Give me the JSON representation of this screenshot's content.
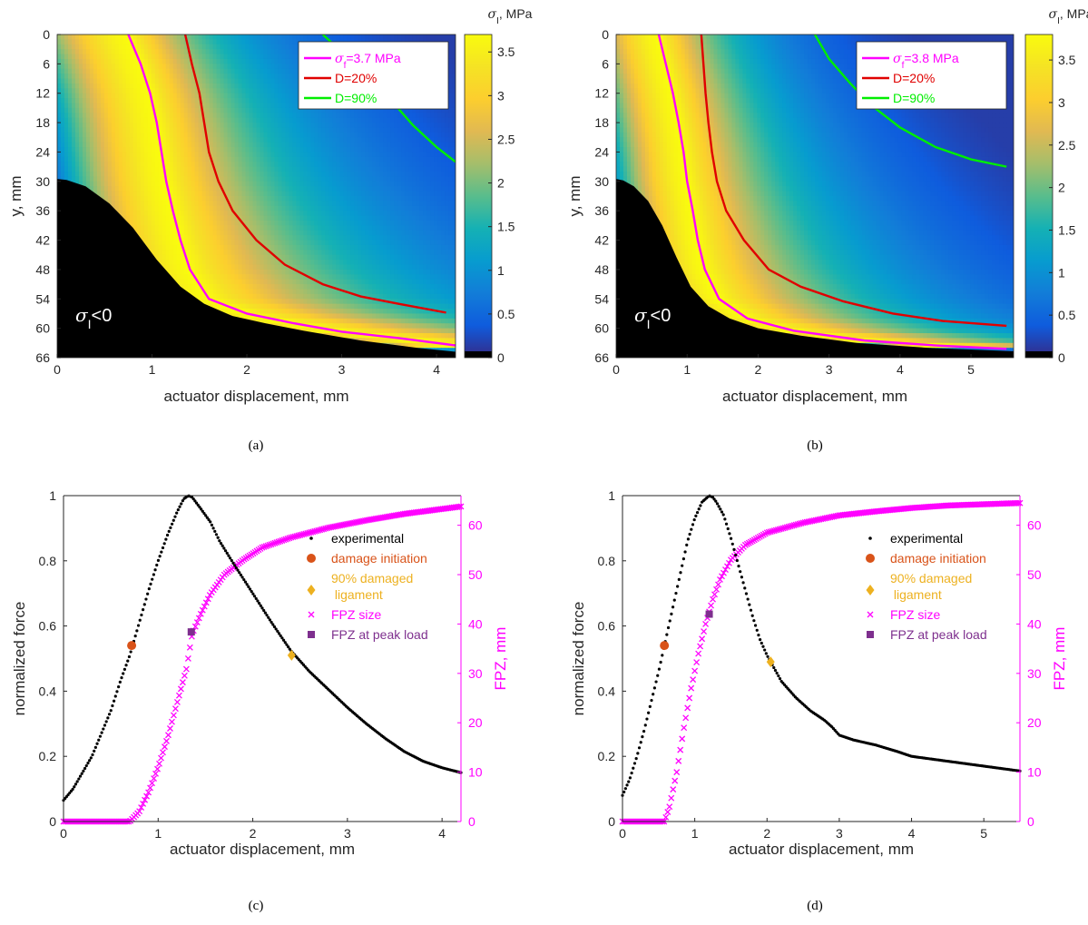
{
  "captions": [
    "(a)",
    "(b)",
    "(c)",
    "(d)"
  ],
  "colors": {
    "magenta": "#ff00ff",
    "red": "#e00000",
    "green": "#00ee00",
    "black": "#000000",
    "damage_init": "#d95319",
    "ligament": "#edb120",
    "fpz_peak": "#7e2f8e"
  },
  "colormap": "parula",
  "chart_data": [
    {
      "type": "heatmap",
      "caption": "(a)",
      "xlabel": "actuator displacement, mm",
      "ylabel": "y, mm",
      "xlim": [
        0,
        4.2
      ],
      "ylim": [
        0,
        66
      ],
      "y_reversed": true,
      "x_ticks": [
        0,
        1,
        2,
        3,
        4
      ],
      "y_ticks": [
        0,
        6,
        12,
        18,
        24,
        30,
        36,
        42,
        48,
        54,
        60,
        66
      ],
      "colorbar": {
        "label": "σI, MPa",
        "label_sym": "σ",
        "label_sub": "I",
        "label_tail": ", MPa",
        "range": [
          0,
          3.7
        ],
        "ticks": [
          0,
          0.5,
          1,
          1.5,
          2,
          2.5,
          3,
          3.5
        ]
      },
      "annotation": {
        "sym": "σ",
        "sub": "I",
        "tail": "<0"
      },
      "legend": [
        {
          "sym": "σ",
          "sub": "f",
          "tail": "=3.7 MPa",
          "color": "#ff00ff"
        },
        {
          "sym": "",
          "sub": "",
          "tail": "D=20%",
          "color": "#e00000"
        },
        {
          "sym": "",
          "sub": "",
          "tail": "D=90%",
          "color": "#00ee00"
        }
      ],
      "field": {
        "t0": 0.75,
        "t1": 2.8,
        "k": 0.12,
        "delta": 1.3
      },
      "neg_region": [
        [
          0,
          29.5
        ],
        [
          0.1,
          29.7
        ],
        [
          0.3,
          31
        ],
        [
          0.55,
          34.5
        ],
        [
          0.8,
          39.5
        ],
        [
          1.05,
          46
        ],
        [
          1.3,
          51.5
        ],
        [
          1.55,
          55
        ],
        [
          1.85,
          57.5
        ],
        [
          2.2,
          59
        ],
        [
          2.6,
          60.5
        ],
        [
          3.2,
          62.5
        ],
        [
          3.8,
          64
        ],
        [
          4.2,
          64.8
        ]
      ],
      "contours": {
        "sigma_f": [
          [
            0.75,
            0
          ],
          [
            0.88,
            6
          ],
          [
            0.98,
            12
          ],
          [
            1.05,
            18
          ],
          [
            1.1,
            24
          ],
          [
            1.15,
            30
          ],
          [
            1.22,
            36
          ],
          [
            1.3,
            42
          ],
          [
            1.4,
            48
          ],
          [
            1.6,
            54
          ],
          [
            2.0,
            57
          ],
          [
            2.5,
            59
          ],
          [
            3.0,
            60.7
          ],
          [
            3.6,
            62
          ],
          [
            4.2,
            63.5
          ]
        ],
        "D20": [
          [
            1.35,
            0
          ],
          [
            1.42,
            6
          ],
          [
            1.5,
            12
          ],
          [
            1.55,
            18
          ],
          [
            1.6,
            24
          ],
          [
            1.7,
            30
          ],
          [
            1.85,
            36
          ],
          [
            2.1,
            42
          ],
          [
            2.4,
            47
          ],
          [
            2.8,
            51
          ],
          [
            3.2,
            53.5
          ],
          [
            3.6,
            55
          ],
          [
            4.1,
            56.8
          ]
        ],
        "D90": [
          [
            2.8,
            0
          ],
          [
            3.0,
            3.5
          ],
          [
            3.25,
            8
          ],
          [
            3.5,
            13
          ],
          [
            3.75,
            18.5
          ],
          [
            4.0,
            23
          ],
          [
            4.2,
            26
          ]
        ]
      }
    },
    {
      "type": "heatmap",
      "caption": "(b)",
      "xlabel": "actuator displacement, mm",
      "ylabel": "y, mm",
      "xlim": [
        0,
        5.6
      ],
      "ylim": [
        0,
        66
      ],
      "y_reversed": true,
      "x_ticks": [
        0,
        1,
        2,
        3,
        4,
        5
      ],
      "y_ticks": [
        0,
        6,
        12,
        18,
        24,
        30,
        36,
        42,
        48,
        54,
        60,
        66
      ],
      "colorbar": {
        "label": "σI, MPa",
        "label_sym": "σ",
        "label_sub": "I",
        "label_tail": ", MPa",
        "range": [
          0,
          3.8
        ],
        "ticks": [
          0,
          0.5,
          1,
          1.5,
          2,
          2.5,
          3,
          3.5
        ]
      },
      "annotation": {
        "sym": "σ",
        "sub": "I",
        "tail": "<0"
      },
      "legend": [
        {
          "sym": "σ",
          "sub": "f",
          "tail": "=3.8 MPa",
          "color": "#ff00ff"
        },
        {
          "sym": "",
          "sub": "",
          "tail": "D=20%",
          "color": "#e00000"
        },
        {
          "sym": "",
          "sub": "",
          "tail": "D=90%",
          "color": "#00ee00"
        }
      ],
      "field": {
        "t0": 0.55,
        "t1": 2.9,
        "k": 0.1,
        "delta": 1.25
      },
      "neg_region": [
        [
          0,
          29.5
        ],
        [
          0.1,
          29.8
        ],
        [
          0.25,
          31
        ],
        [
          0.45,
          34
        ],
        [
          0.65,
          39
        ],
        [
          0.85,
          45.5
        ],
        [
          1.05,
          51.5
        ],
        [
          1.3,
          55.5
        ],
        [
          1.6,
          58
        ],
        [
          2.0,
          60
        ],
        [
          2.6,
          61.5
        ],
        [
          3.4,
          63
        ],
        [
          4.4,
          64
        ],
        [
          5.6,
          64.7
        ]
      ],
      "contours": {
        "sigma_f": [
          [
            0.6,
            0
          ],
          [
            0.7,
            6
          ],
          [
            0.8,
            12
          ],
          [
            0.88,
            18
          ],
          [
            0.95,
            24
          ],
          [
            1.0,
            30
          ],
          [
            1.08,
            36
          ],
          [
            1.15,
            42
          ],
          [
            1.25,
            48
          ],
          [
            1.45,
            54
          ],
          [
            1.85,
            58
          ],
          [
            2.5,
            60.5
          ],
          [
            3.5,
            62.5
          ],
          [
            4.5,
            63.5
          ],
          [
            5.5,
            64.2
          ]
        ],
        "D20": [
          [
            1.2,
            0
          ],
          [
            1.23,
            6
          ],
          [
            1.26,
            12
          ],
          [
            1.3,
            18
          ],
          [
            1.35,
            24
          ],
          [
            1.42,
            30
          ],
          [
            1.55,
            36
          ],
          [
            1.8,
            42
          ],
          [
            2.15,
            48
          ],
          [
            2.6,
            51.5
          ],
          [
            3.2,
            54.5
          ],
          [
            3.9,
            57
          ],
          [
            4.6,
            58.5
          ],
          [
            5.5,
            59.5
          ]
        ],
        "D90": [
          [
            2.8,
            0
          ],
          [
            3.0,
            5
          ],
          [
            3.3,
            10
          ],
          [
            3.6,
            14.5
          ],
          [
            4.0,
            19
          ],
          [
            4.5,
            23
          ],
          [
            5.0,
            25.5
          ],
          [
            5.5,
            27
          ]
        ]
      }
    },
    {
      "type": "scatter",
      "caption": "(c)",
      "xlabel": "actuator displacement, mm",
      "ylabel": "normalized force",
      "y2label": "FPZ, mm",
      "xlim": [
        0,
        4.2
      ],
      "ylim": [
        0,
        1
      ],
      "y2lim": [
        0,
        66
      ],
      "x_ticks": [
        0,
        1,
        2,
        3,
        4
      ],
      "y_ticks": [
        0,
        0.2,
        0.4,
        0.6,
        0.8,
        1
      ],
      "y2_ticks": [
        0,
        10,
        20,
        30,
        40,
        50,
        60
      ],
      "legend": [
        "experimental",
        "damage initiation",
        "90% damaged\n ligament",
        "FPZ size",
        "FPZ at peak load"
      ],
      "series": [
        {
          "name": "experimental",
          "axis": "left",
          "points": [
            [
              0,
              0.065
            ],
            [
              0.1,
              0.1
            ],
            [
              0.2,
              0.15
            ],
            [
              0.3,
              0.2
            ],
            [
              0.4,
              0.27
            ],
            [
              0.5,
              0.34
            ],
            [
              0.6,
              0.43
            ],
            [
              0.7,
              0.51
            ],
            [
              0.8,
              0.61
            ],
            [
              0.9,
              0.71
            ],
            [
              1.0,
              0.8
            ],
            [
              1.1,
              0.88
            ],
            [
              1.2,
              0.95
            ],
            [
              1.27,
              0.99
            ],
            [
              1.32,
              1.0
            ],
            [
              1.36,
              0.995
            ],
            [
              1.45,
              0.96
            ],
            [
              1.55,
              0.92
            ],
            [
              1.65,
              0.86
            ],
            [
              1.8,
              0.79
            ],
            [
              2.0,
              0.7
            ],
            [
              2.2,
              0.61
            ],
            [
              2.4,
              0.525
            ],
            [
              2.6,
              0.46
            ],
            [
              2.8,
              0.405
            ],
            [
              3.0,
              0.35
            ],
            [
              3.2,
              0.3
            ],
            [
              3.4,
              0.255
            ],
            [
              3.6,
              0.215
            ],
            [
              3.8,
              0.185
            ],
            [
              4.0,
              0.165
            ],
            [
              4.2,
              0.15
            ]
          ]
        },
        {
          "name": "FPZ size",
          "axis": "right",
          "points": [
            [
              0,
              0
            ],
            [
              0.7,
              0
            ],
            [
              0.8,
              2
            ],
            [
              0.9,
              6
            ],
            [
              1.0,
              11
            ],
            [
              1.1,
              17
            ],
            [
              1.2,
              24
            ],
            [
              1.3,
              31
            ],
            [
              1.36,
              38
            ],
            [
              1.45,
              42
            ],
            [
              1.55,
              46
            ],
            [
              1.7,
              50
            ],
            [
              1.9,
              53
            ],
            [
              2.1,
              55.5
            ],
            [
              2.4,
              57.5
            ],
            [
              2.8,
              59.5
            ],
            [
              3.2,
              61
            ],
            [
              3.6,
              62.3
            ],
            [
              4.2,
              63.8
            ]
          ]
        }
      ],
      "markers": [
        {
          "name": "damage initiation",
          "x": 0.72,
          "y": 0.54,
          "axis": "left"
        },
        {
          "name": "90% damaged ligament",
          "x": 2.41,
          "y": 0.51,
          "axis": "left"
        },
        {
          "name": "FPZ at peak load",
          "x": 1.35,
          "y": 38.4,
          "axis": "right"
        }
      ]
    },
    {
      "type": "scatter",
      "caption": "(d)",
      "xlabel": "actuator displacement, mm",
      "ylabel": "normalized force",
      "y2label": "FPZ, mm",
      "xlim": [
        0,
        5.5
      ],
      "ylim": [
        0,
        1
      ],
      "y2lim": [
        0,
        66
      ],
      "x_ticks": [
        0,
        1,
        2,
        3,
        4,
        5
      ],
      "y_ticks": [
        0,
        0.2,
        0.4,
        0.6,
        0.8,
        1
      ],
      "y2_ticks": [
        0,
        10,
        20,
        30,
        40,
        50,
        60
      ],
      "legend": [
        "experimental",
        "damage initiation",
        "90% damaged\n ligament",
        "FPZ size",
        "FPZ at peak load"
      ],
      "series": [
        {
          "name": "experimental",
          "axis": "left",
          "points": [
            [
              0,
              0.08
            ],
            [
              0.1,
              0.13
            ],
            [
              0.2,
              0.2
            ],
            [
              0.3,
              0.28
            ],
            [
              0.4,
              0.37
            ],
            [
              0.5,
              0.46
            ],
            [
              0.6,
              0.56
            ],
            [
              0.7,
              0.66
            ],
            [
              0.8,
              0.76
            ],
            [
              0.9,
              0.86
            ],
            [
              1.0,
              0.93
            ],
            [
              1.1,
              0.98
            ],
            [
              1.2,
              1.0
            ],
            [
              1.25,
              0.995
            ],
            [
              1.3,
              0.98
            ],
            [
              1.4,
              0.94
            ],
            [
              1.5,
              0.87
            ],
            [
              1.6,
              0.79
            ],
            [
              1.7,
              0.71
            ],
            [
              1.8,
              0.63
            ],
            [
              1.9,
              0.56
            ],
            [
              2.0,
              0.51
            ],
            [
              2.1,
              0.47
            ],
            [
              2.2,
              0.43
            ],
            [
              2.4,
              0.38
            ],
            [
              2.6,
              0.34
            ],
            [
              2.8,
              0.31
            ],
            [
              2.9,
              0.29
            ],
            [
              3.0,
              0.265
            ],
            [
              3.2,
              0.25
            ],
            [
              3.5,
              0.235
            ],
            [
              3.8,
              0.215
            ],
            [
              4.0,
              0.2
            ],
            [
              4.5,
              0.185
            ],
            [
              5.0,
              0.17
            ],
            [
              5.5,
              0.155
            ]
          ]
        },
        {
          "name": "FPZ size",
          "axis": "right",
          "points": [
            [
              0,
              0
            ],
            [
              0.58,
              0
            ],
            [
              0.65,
              3
            ],
            [
              0.75,
              10
            ],
            [
              0.85,
              19
            ],
            [
              0.95,
              27
            ],
            [
              1.05,
              34
            ],
            [
              1.15,
              40
            ],
            [
              1.25,
              45
            ],
            [
              1.35,
              49
            ],
            [
              1.5,
              53
            ],
            [
              1.7,
              56
            ],
            [
              2.0,
              58.5
            ],
            [
              2.5,
              60.5
            ],
            [
              3.0,
              62
            ],
            [
              3.5,
              62.8
            ],
            [
              4.0,
              63.5
            ],
            [
              4.5,
              64
            ],
            [
              5.5,
              64.5
            ]
          ]
        }
      ],
      "markers": [
        {
          "name": "damage initiation",
          "x": 0.58,
          "y": 0.54,
          "axis": "left"
        },
        {
          "name": "90% damaged ligament",
          "x": 2.05,
          "y": 0.49,
          "axis": "left"
        },
        {
          "name": "FPZ at peak load",
          "x": 1.2,
          "y": 42,
          "axis": "right"
        }
      ]
    }
  ]
}
